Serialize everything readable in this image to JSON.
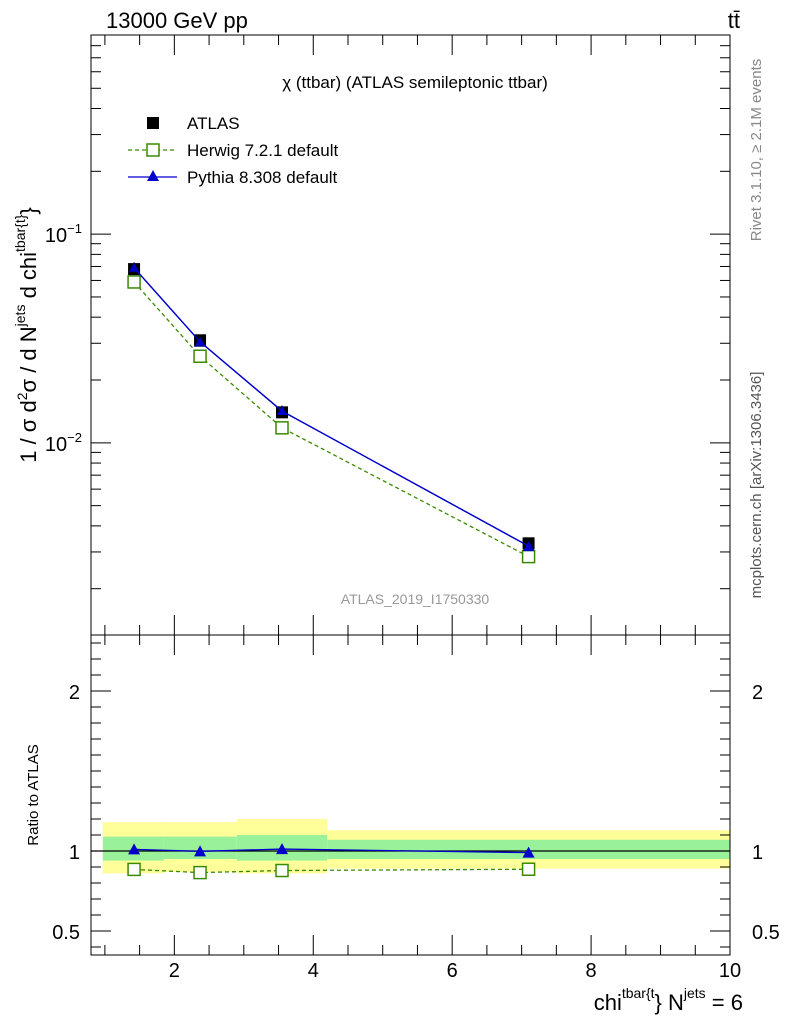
{
  "header": {
    "left": "13000 GeV pp",
    "right": "tt̄"
  },
  "side_labels": {
    "rivet": "Rivet 3.1.10, ≥ 2.1M events",
    "mcplots": "mcplots.cern.ch [arXiv:1306.3436]"
  },
  "watermark": "ATLAS_2019_I1750330",
  "chart_data": [
    {
      "type": "line",
      "title": "χ (ttbar) (ATLAS semileptonic ttbar)",
      "ylabel": "1 / σ d²σ / d N^jets d chi^tbar{t}",
      "y_scale": "log",
      "xlim": [
        0.8,
        10.0
      ],
      "ylim": [
        0.0012,
        0.9
      ],
      "yticks_major": [
        {
          "value": 0.1,
          "label": "10",
          "exp": "−1"
        },
        {
          "value": 0.01,
          "label": "10",
          "exp": "−2"
        }
      ],
      "legend_placement": "top-left",
      "x": [
        1.42,
        2.37,
        3.55,
        7.1
      ],
      "series": [
        {
          "name": "ATLAS",
          "values": [
            0.068,
            0.031,
            0.014,
            0.0033
          ],
          "color": "#000000",
          "marker": "filled-square"
        },
        {
          "name": "Herwig 7.2.1 default",
          "values": [
            0.059,
            0.026,
            0.0118,
            0.00285
          ],
          "color": "#3a8a00",
          "marker": "open-square",
          "dashed": true
        },
        {
          "name": "Pythia 8.308 default",
          "values": [
            0.069,
            0.0305,
            0.0142,
            0.0032
          ],
          "color": "#0000cc",
          "marker": "filled-triangle"
        }
      ]
    },
    {
      "type": "line",
      "ylabel": "Ratio to ATLAS",
      "xlabel": "chi^tbar{t} N^jets = 6",
      "xlim": [
        0.8,
        10.0
      ],
      "ylim": [
        0.35,
        2.35
      ],
      "xticks": [
        2,
        4,
        6,
        8,
        10
      ],
      "yticks": [
        {
          "value": 0.5,
          "label": "0.5"
        },
        {
          "value": 1,
          "label": "1"
        },
        {
          "value": 2,
          "label": "2"
        }
      ],
      "x": [
        1.42,
        2.37,
        3.55,
        7.1
      ],
      "bins": [
        [
          0.97,
          1.85
        ],
        [
          1.85,
          2.9
        ],
        [
          2.9,
          4.2
        ],
        [
          4.2,
          10.0
        ]
      ],
      "band_inner": [
        [
          0.94,
          1.09
        ],
        [
          0.95,
          1.09
        ],
        [
          0.94,
          1.1
        ],
        [
          0.95,
          1.07
        ]
      ],
      "band_outer": [
        [
          0.86,
          1.18
        ],
        [
          0.87,
          1.18
        ],
        [
          0.86,
          1.2
        ],
        [
          0.89,
          1.13
        ]
      ],
      "band_colors": {
        "inner": "#99f299",
        "outer": "#ffff99"
      },
      "series": [
        {
          "name": "Herwig 7.2.1 default",
          "values": [
            0.885,
            0.865,
            0.878,
            0.886
          ],
          "color": "#3a8a00",
          "marker": "open-square",
          "dashed": true
        },
        {
          "name": "Pythia 8.308 default",
          "values": [
            1.01,
            0.998,
            1.012,
            0.99
          ],
          "color": "#0000cc",
          "marker": "filled-triangle"
        }
      ]
    }
  ]
}
